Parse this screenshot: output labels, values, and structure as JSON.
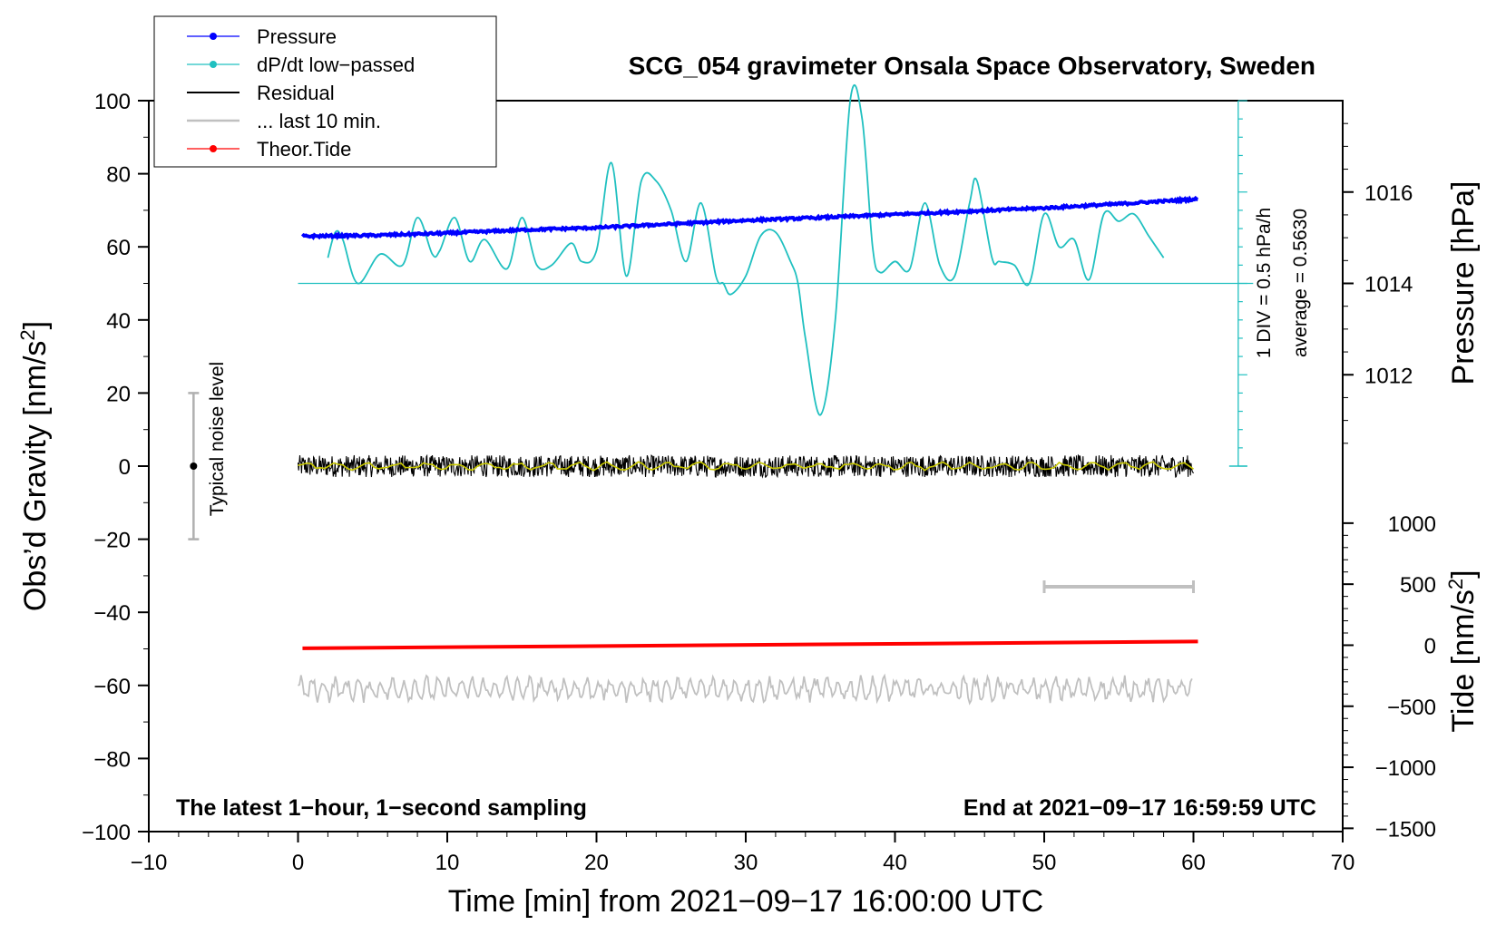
{
  "chart_data": {
    "type": "line",
    "title": "SCG_054 gravimeter Onsala Space Observatory, Sweden",
    "xlabel": "Time [min] from 2021−09−17 16:00:00 UTC",
    "ylabel_left": "Obs’d Gravity [nm/s",
    "ylabel_left_sup": "2",
    "ylabel_left_end": "]",
    "ylabel_pressure": "Pressure [hPa]",
    "ylabel_tide": "Tide [nm/s",
    "ylabel_tide_sup": "2",
    "ylabel_tide_end": "]",
    "xlim": [
      -10,
      70
    ],
    "ylim": [
      -100,
      100
    ],
    "x_ticks": [
      "−10",
      "0",
      "10",
      "20",
      "30",
      "40",
      "50",
      "60",
      "70"
    ],
    "y_ticks": [
      "−100",
      "−80",
      "−60",
      "−40",
      "−20",
      "0",
      "20",
      "40",
      "60",
      "80",
      "100"
    ],
    "pressure_ticks": [
      "1012",
      "1014",
      "1016"
    ],
    "tide_ticks": [
      "−1500",
      "−1000",
      "−500",
      "0",
      "500",
      "1000"
    ],
    "legend": [
      "Pressure",
      "dP/dt low−passed",
      "Residual",
      "... last 10 min.",
      "Theor.Tide"
    ],
    "legend_position": "top-left",
    "annotation_left": "The latest 1−hour, 1−second sampling",
    "annotation_right": "End at 2021−09−17 16:59:59 UTC",
    "noise_label": "Typical noise level",
    "noise_bar": {
      "x": -7,
      "center": 0,
      "half_range": 20
    },
    "dpdt_scale_label": "1 DIV = 0.5 hPa/h",
    "dpdt_average_label": "average = 0.5630",
    "dpdt_baseline_gravity_units": 50,
    "last10_bar_minutes": [
      50,
      60
    ],
    "series": [
      {
        "name": "Pressure",
        "color": "#0000ff",
        "unit": "hPa",
        "x": [
          0,
          5,
          10,
          15,
          20,
          25,
          30,
          35,
          40,
          45,
          50,
          55,
          60
        ],
        "values": [
          1015.03,
          1015.05,
          1015.1,
          1015.17,
          1015.22,
          1015.3,
          1015.38,
          1015.44,
          1015.51,
          1015.58,
          1015.65,
          1015.74,
          1015.84
        ]
      },
      {
        "name": "dP/dt low−passed",
        "color": "#20c0c0",
        "unit": "nm/s2 plot units",
        "x": [
          2,
          2.5,
          3,
          4,
          5.5,
          7,
          8,
          9,
          9.5,
          10.5,
          11.5,
          12.5,
          14,
          15,
          16,
          17,
          18.3,
          19,
          20,
          21,
          22,
          23,
          24,
          25,
          26,
          27,
          28,
          28.5,
          29,
          30,
          31,
          32,
          33,
          33.5,
          34,
          35,
          36,
          37,
          37.8,
          38.5,
          39,
          40,
          41,
          42,
          43,
          44,
          45,
          45.5,
          46.5,
          47,
          48,
          49,
          50,
          51,
          52,
          53,
          54,
          55,
          56,
          57,
          58
        ],
        "values": [
          57,
          64,
          62,
          50,
          58,
          55,
          68,
          58,
          59,
          68,
          56,
          62,
          54,
          68,
          55,
          55,
          61,
          56,
          59,
          83,
          52,
          78,
          78,
          70,
          56,
          72,
          52,
          50,
          47,
          52,
          63,
          64,
          56,
          50,
          35,
          14,
          40,
          100,
          95,
          60,
          53,
          56,
          54,
          72,
          55,
          52,
          72,
          78,
          57,
          56,
          55,
          50,
          69,
          60,
          62,
          51,
          69,
          67,
          69,
          63,
          57
        ]
      },
      {
        "name": "Residual",
        "color": "#000000",
        "range": [
          0,
          60
        ],
        "level": 0,
        "amplitude": 3
      },
      {
        "name": "... last 10 min.",
        "color": "#c0c0c0",
        "range": [
          0,
          60
        ],
        "level": -61,
        "amplitude": 3
      },
      {
        "name": "Theor.Tide",
        "color": "#ff0000",
        "unit": "nm/s2",
        "x": [
          0,
          60
        ],
        "values": [
          -25,
          30
        ]
      }
    ]
  }
}
